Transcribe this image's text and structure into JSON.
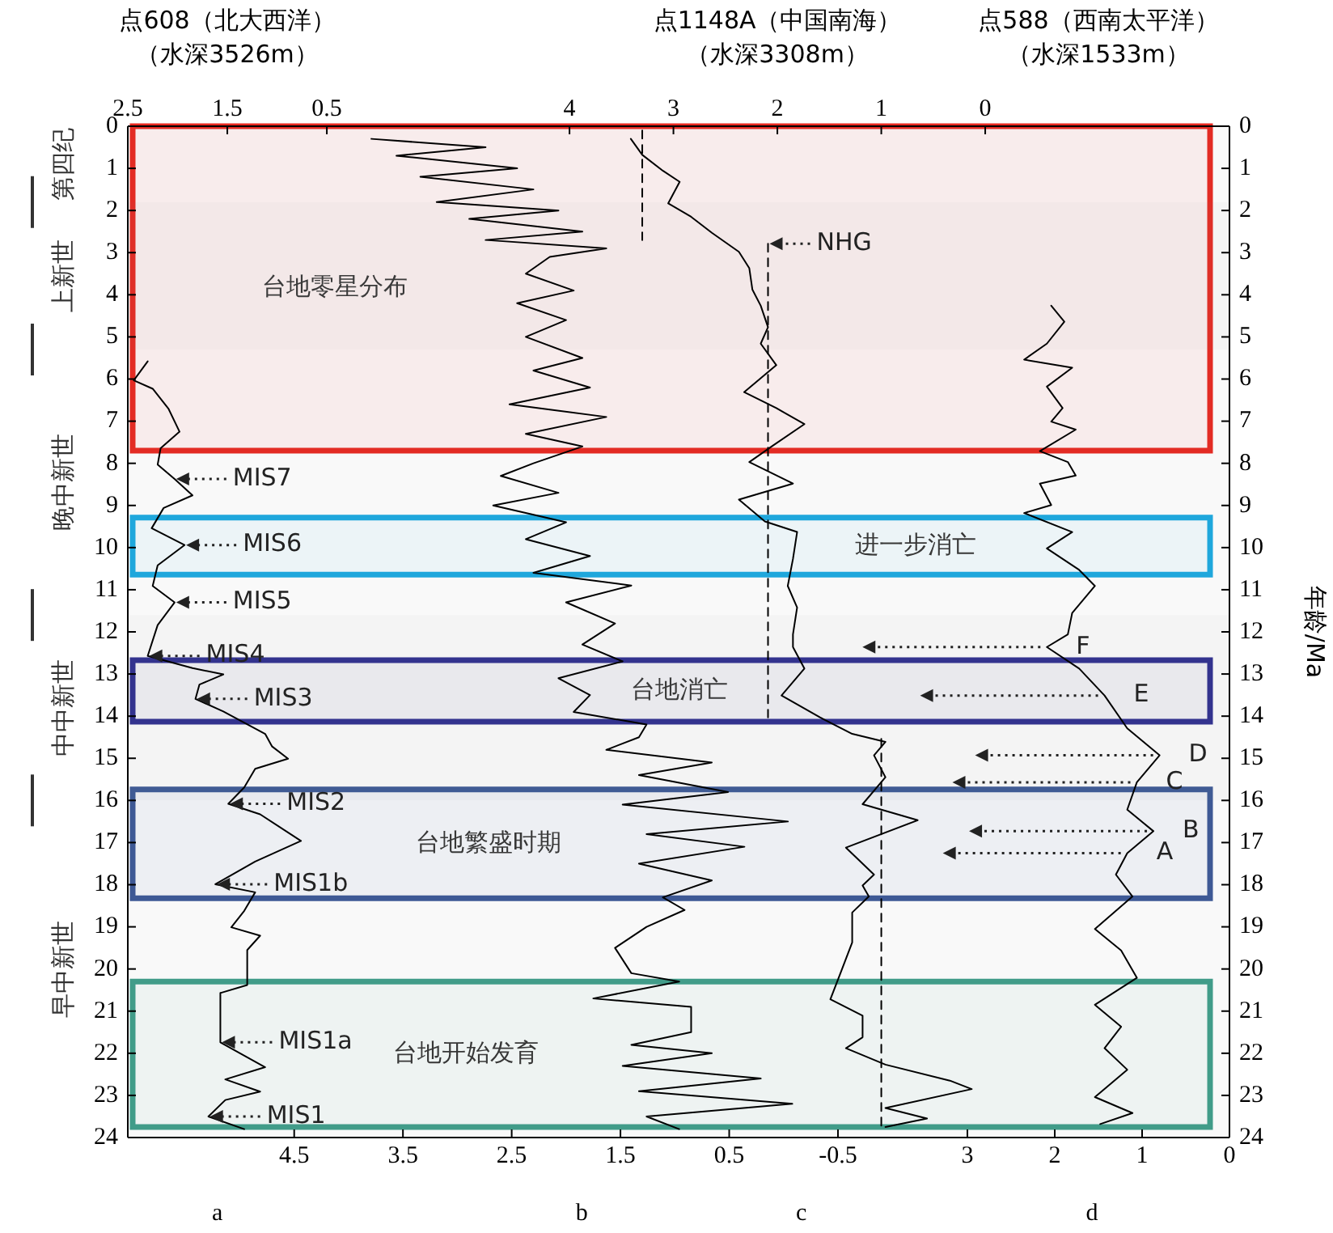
{
  "chart_data": [
    {
      "type": "line",
      "grid": false,
      "legend": false,
      "marker": "none",
      "line_style": "solid",
      "xlim": [
        2.5,
        -8.57
      ],
      "xticks": [
        2.5,
        1.5,
        0.5
      ],
      "xlabel": "点608（北大西洋）（水深3526m）",
      "ylim": [
        24,
        0
      ],
      "yticks": [
        0,
        1,
        2,
        3,
        4,
        5,
        6,
        7,
        8,
        9,
        10,
        11,
        12,
        13,
        14,
        15,
        16,
        17,
        18,
        19,
        20,
        21,
        22,
        23,
        24
      ],
      "y2lim": [
        24,
        0
      ],
      "y2ticks": [
        0,
        1,
        2,
        3,
        4,
        5,
        6,
        7,
        8,
        9,
        10,
        11,
        12,
        13,
        14,
        15,
        16,
        17,
        18,
        19,
        20,
        21,
        22,
        23,
        24
      ],
      "y2label": "年龄/Ma",
      "series": [
        {
          "name": "a",
          "color": "#000000",
          "x": [
            2.3,
            2.44,
            2.25,
            2.09,
            1.98,
            2.17,
            2.2,
            2.03,
            1.85,
            2.14,
            2.26,
            1.93,
            2.2,
            2.25,
            2.03,
            2.2,
            2.3,
            1.85,
            1.54,
            1.78,
            1.82,
            1.54,
            1.12,
            1.05,
            0.89,
            1.22,
            1.33,
            1.49,
            1.17,
            0.76,
            1.22,
            1.62,
            1.22,
            1.33,
            1.46,
            1.17,
            1.3,
            1.3,
            1.57,
            1.57,
            1.12,
            1.52,
            1.17,
            1.52,
            1.69,
            1.33
          ],
          "values": [
            5.58,
            6.03,
            6.23,
            6.71,
            7.25,
            7.64,
            8.03,
            8.37,
            8.76,
            9.06,
            9.54,
            9.94,
            10.42,
            10.91,
            11.3,
            11.84,
            12.57,
            12.86,
            13.01,
            13.25,
            13.59,
            13.89,
            14.42,
            14.72,
            15.01,
            15.25,
            15.69,
            16.08,
            16.33,
            16.96,
            17.45,
            17.99,
            18.18,
            18.62,
            19.01,
            19.21,
            19.55,
            20.38,
            20.57,
            21.74,
            22.33,
            22.62,
            22.91,
            23.11,
            23.5,
            23.8
          ]
        }
      ],
      "bands": [
        {
          "axis": "y",
          "from": 0,
          "to": 7.7,
          "color": "#e8271f",
          "label": "台地零星分布"
        },
        {
          "axis": "y",
          "from": 9.29,
          "to": 10.64,
          "color": "#1aa9e1",
          "label": "进一步消亡"
        },
        {
          "axis": "y",
          "from": 12.67,
          "to": 14.13,
          "color": "#2b2b8f",
          "label": "台地消亡"
        },
        {
          "axis": "y",
          "from": 15.74,
          "to": 18.32,
          "color": "#3a5796",
          "label": "台地繁盛时期"
        },
        {
          "axis": "y",
          "from": 20.3,
          "to": 23.75,
          "color": "#3e9e8a",
          "label": "台地开始发育"
        },
        {
          "axis": "y",
          "from": 0,
          "to": 1.8,
          "label": "第四纪"
        },
        {
          "axis": "y",
          "from": 1.8,
          "to": 5.3,
          "label": "上新世"
        },
        {
          "axis": "y",
          "from": 5.3,
          "to": 11.6,
          "label": "晚中新世"
        },
        {
          "axis": "y",
          "from": 11.6,
          "to": 16,
          "label": "中中新世"
        },
        {
          "axis": "y",
          "from": 16,
          "to": 24,
          "label": "早中新世"
        }
      ],
      "annotations": [
        {
          "text": "MIS7",
          "x": 2.03,
          "y": 8.37
        },
        {
          "text": "MIS6",
          "x": 1.93,
          "y": 9.94
        },
        {
          "text": "MIS5",
          "x": 2.03,
          "y": 11.3
        },
        {
          "text": "MIS4",
          "x": 2.3,
          "y": 12.57
        },
        {
          "text": "MIS3",
          "x": 1.82,
          "y": 13.59
        },
        {
          "text": "MIS2",
          "x": 1.49,
          "y": 16.08
        },
        {
          "text": "MIS1b",
          "x": 1.62,
          "y": 17.99
        },
        {
          "text": "MIS1a",
          "x": 1.57,
          "y": 21.74
        },
        {
          "text": "MIS1",
          "x": 1.69,
          "y": 23.5
        }
      ]
    },
    {
      "type": "line",
      "grid": false,
      "legend": false,
      "marker": "none",
      "line_style": "solid",
      "xlim": [
        6.03,
        -4.1
      ],
      "xticks": [
        4.5,
        3.5,
        2.5,
        1.5,
        0.5,
        -0.5
      ],
      "ylim": [
        24,
        0
      ],
      "tick_labels": "x",
      "series": [
        {
          "name": "b",
          "color": "#000000",
          "x": [
            3.79,
            2.74,
            3.56,
            2.45,
            3.34,
            2.3,
            3.19,
            2.07,
            2.89,
            1.85,
            2.74,
            1.63,
            2.15,
            2.37,
            1.93,
            2.45,
            2.0,
            2.37,
            1.85,
            2.3,
            1.78,
            2.52,
            1.63,
            2.37,
            1.85,
            2.3,
            2.6,
            2.07,
            2.67,
            2.0,
            2.37,
            1.78,
            2.3,
            1.4,
            2.0,
            1.55,
            1.85,
            1.48,
            2.07,
            1.78,
            1.93,
            1.26,
            1.33,
            1.63,
            0.66,
            1.33,
            0.51,
            1.48,
            -0.04,
            1.26,
            0.36,
            1.33,
            0.66,
            1.11,
            0.91,
            1.26,
            1.55,
            1.4,
            0.96,
            1.75,
            0.85,
            0.85,
            1.4,
            0.66,
            1.48,
            0.21,
            1.33,
            -0.08,
            1.26,
            0.96
          ],
          "values": [
            0.3,
            0.5,
            0.7,
            1.0,
            1.2,
            1.5,
            1.8,
            2.0,
            2.2,
            2.5,
            2.7,
            2.9,
            3.1,
            3.5,
            3.9,
            4.2,
            4.6,
            5.0,
            5.5,
            5.8,
            6.2,
            6.6,
            6.9,
            7.3,
            7.6,
            8.0,
            8.3,
            8.7,
            9.0,
            9.4,
            9.8,
            10.2,
            10.6,
            10.9,
            11.3,
            11.8,
            12.3,
            12.7,
            13.1,
            13.5,
            13.9,
            14.2,
            14.5,
            14.8,
            15.1,
            15.4,
            15.8,
            16.1,
            16.5,
            16.8,
            17.1,
            17.5,
            17.9,
            18.3,
            18.6,
            19.0,
            19.5,
            20.1,
            20.3,
            20.7,
            20.9,
            21.5,
            21.8,
            22.0,
            22.3,
            22.6,
            22.9,
            23.2,
            23.5,
            23.8
          ]
        }
      ]
    },
    {
      "type": "line",
      "grid": false,
      "legend": false,
      "marker": "none",
      "line_style": "solid",
      "xlim": [
        8.25,
        -2.35
      ],
      "xticks": [
        4,
        3,
        2,
        1,
        0
      ],
      "xlabel": "点1148A（中国南海）（水深3308m）",
      "ylim": [
        24,
        0
      ],
      "tick_labels": "x",
      "series": [
        {
          "name": "c",
          "color": "#000000",
          "x": [
            3.41,
            3.3,
            3.1,
            2.94,
            3.05,
            2.83,
            2.63,
            2.37,
            2.27,
            2.24,
            2.16,
            2.09,
            2.16,
            2.01,
            2.32,
            2.01,
            1.74,
            2.05,
            2.27,
            1.85,
            2.37,
            2.12,
            1.81,
            1.85,
            1.9,
            1.81,
            1.85,
            1.85,
            1.74,
            1.96,
            1.59,
            1.28,
            0.96,
            1.07,
            0.96,
            1.18,
            0.65,
            1.34,
            1.07,
            1.18,
            1.12,
            1.28,
            1.28,
            1.39,
            1.49,
            1.18,
            1.18,
            1.34,
            0.96,
            0.34,
            0.13,
            0.96,
            0.56,
            0.96
          ],
          "values": [
            0.3,
            0.68,
            1.06,
            1.32,
            1.83,
            2.15,
            2.53,
            2.98,
            3.37,
            3.88,
            4.26,
            4.77,
            5.16,
            5.67,
            6.31,
            6.69,
            7.07,
            7.59,
            7.97,
            8.48,
            8.86,
            9.38,
            9.63,
            10.27,
            10.91,
            11.42,
            12.06,
            12.36,
            12.87,
            13.51,
            14.03,
            14.42,
            14.61,
            14.93,
            15.45,
            16.09,
            16.47,
            17.12,
            17.76,
            18.02,
            18.28,
            18.66,
            19.37,
            20.08,
            20.72,
            21.11,
            21.62,
            21.88,
            22.27,
            22.65,
            22.85,
            23.3,
            23.55,
            23.75
          ]
        },
        {
          "color": "#000000",
          "line_style": "dashed",
          "x": [
            3.3,
            3.3
          ],
          "values": [
            0.1,
            2.7
          ]
        },
        {
          "color": "#000000",
          "line_style": "dashed",
          "x": [
            2.09,
            2.09
          ],
          "values": [
            2.79,
            14.03
          ]
        },
        {
          "color": "#000000",
          "line_style": "dashed",
          "x": [
            1.0,
            1.0
          ],
          "values": [
            14.54,
            23.81
          ]
        }
      ],
      "annotations": [
        {
          "text": "NHG",
          "x": 2.09,
          "y": 2.79
        }
      ]
    },
    {
      "type": "line",
      "grid": false,
      "legend": false,
      "marker": "none",
      "line_style": "solid",
      "title": "点588（西南太平洋）（水深1533m）",
      "xlim": [
        12.61,
        0
      ],
      "xticks": [
        3,
        2,
        1,
        0
      ],
      "ylim": [
        24,
        0
      ],
      "tick_labels": "x",
      "series": [
        {
          "name": "d",
          "color": "#000000",
          "x": [
            2.04,
            1.89,
            2.09,
            2.35,
            1.8,
            2.09,
            1.91,
            2.04,
            1.76,
            2.17,
            1.85,
            1.76,
            2.17,
            2.04,
            2.35,
            1.8,
            2.09,
            1.72,
            1.54,
            1.8,
            1.85,
            2.09,
            1.72,
            1.43,
            1.17,
            0.8,
            1.06,
            1.17,
            0.87,
            1.17,
            1.3,
            1.11,
            1.54,
            1.24,
            1.06,
            1.54,
            1.24,
            1.43,
            1.17,
            1.54,
            1.11,
            1.48
          ],
          "values": [
            4.26,
            4.64,
            5.16,
            5.54,
            5.73,
            6.18,
            6.69,
            7.01,
            7.2,
            7.71,
            7.97,
            8.29,
            8.48,
            8.99,
            9.18,
            9.63,
            10.02,
            10.53,
            10.91,
            11.55,
            12.06,
            12.36,
            12.87,
            13.51,
            14.29,
            14.93,
            15.57,
            16.22,
            16.73,
            17.25,
            17.76,
            18.28,
            19.05,
            19.56,
            20.21,
            20.85,
            21.37,
            21.88,
            22.39,
            23.04,
            23.42,
            23.68
          ]
        }
      ],
      "annotations": [
        {
          "text": "F",
          "x": 2.09,
          "y": 12.36
        },
        {
          "text": "E",
          "x": 1.43,
          "y": 13.51
        },
        {
          "text": "D",
          "x": 0.8,
          "y": 14.93
        },
        {
          "text": "C",
          "x": 1.06,
          "y": 15.57
        },
        {
          "text": "B",
          "x": 0.87,
          "y": 16.73
        },
        {
          "text": "A",
          "x": 1.17,
          "y": 17.25
        }
      ]
    }
  ]
}
